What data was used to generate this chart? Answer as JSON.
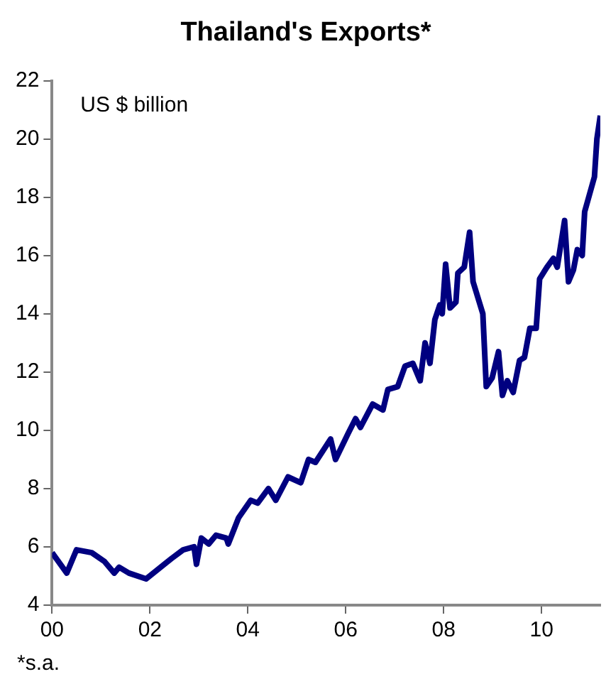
{
  "chart_data": {
    "type": "line",
    "title": "Thailand's Exports*",
    "annotations": [
      "US $ billion",
      "*s.a."
    ],
    "x": [
      0,
      0.3,
      0.5,
      0.81,
      1.07,
      1.27,
      1.37,
      1.57,
      1.92,
      2.29,
      2.44,
      2.68,
      2.9,
      2.95,
      3.05,
      3.2,
      3.35,
      3.56,
      3.6,
      3.81,
      4.06,
      4.2,
      4.42,
      4.57,
      4.82,
      5.08,
      5.24,
      5.38,
      5.69,
      5.79,
      6.05,
      6.2,
      6.3,
      6.55,
      6.76,
      6.86,
      7.06,
      7.21,
      7.37,
      7.52,
      7.62,
      7.72,
      7.82,
      7.92,
      7.97,
      8.04,
      8.13,
      8.25,
      8.29,
      8.42,
      8.53,
      8.6,
      8.8,
      8.87,
      8.99,
      9.12,
      9.2,
      9.3,
      9.42,
      9.55,
      9.65,
      9.76,
      9.89,
      9.96,
      10.11,
      10.24,
      10.32,
      10.47,
      10.55,
      10.65,
      10.73,
      10.83,
      10.88,
      11.08,
      11.13,
      11.2
    ],
    "series": [
      {
        "color": "#000080",
        "values": [
          5.8,
          5.1,
          5.9,
          5.8,
          5.5,
          5.1,
          5.3,
          5.1,
          4.9,
          5.4,
          5.6,
          5.9,
          6.0,
          5.4,
          6.3,
          6.1,
          6.4,
          6.3,
          6.1,
          7.0,
          7.6,
          7.5,
          8.0,
          7.6,
          8.4,
          8.2,
          9.0,
          8.9,
          9.7,
          9.0,
          9.9,
          10.4,
          10.1,
          10.9,
          10.7,
          11.4,
          11.5,
          12.2,
          12.3,
          11.7,
          13.0,
          12.3,
          13.8,
          14.3,
          14.0,
          15.7,
          14.2,
          14.4,
          15.4,
          15.6,
          16.8,
          15.1,
          14.0,
          11.5,
          11.8,
          12.7,
          11.2,
          11.7,
          11.3,
          12.4,
          12.5,
          13.5,
          13.5,
          15.2,
          15.6,
          15.9,
          15.6,
          17.2,
          15.1,
          15.5,
          16.2,
          16.0,
          17.5,
          18.7,
          20.0,
          20.8
        ]
      }
    ],
    "xlim": [
      0,
      11.2
    ],
    "xticks": [
      {
        "value": 0,
        "label": "00"
      },
      {
        "value": 2,
        "label": "02"
      },
      {
        "value": 4,
        "label": "04"
      },
      {
        "value": 6,
        "label": "06"
      },
      {
        "value": 8,
        "label": "08"
      },
      {
        "value": 10,
        "label": "10"
      }
    ],
    "ylim": [
      4,
      22
    ],
    "yticks": [
      4,
      6,
      8,
      10,
      12,
      14,
      16,
      18,
      20,
      22
    ],
    "grid": false,
    "legend": false,
    "marker": "none",
    "line_style": "solid"
  }
}
